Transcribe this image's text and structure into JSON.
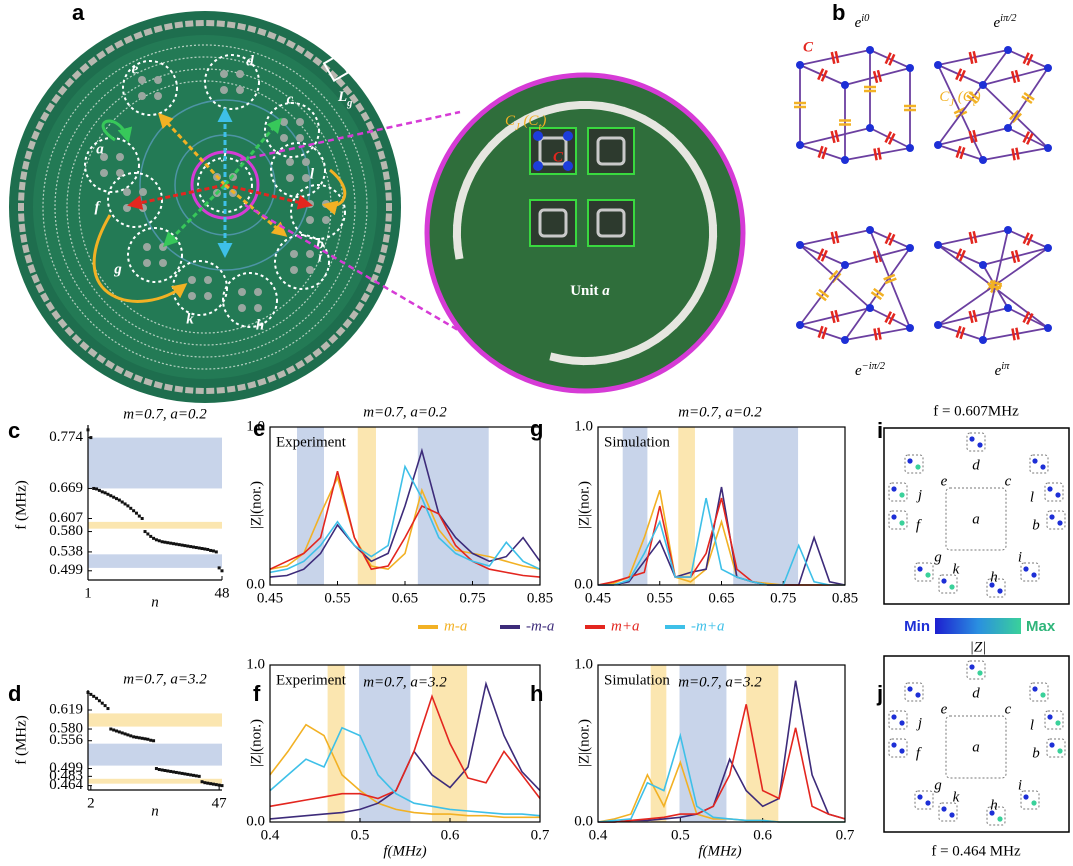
{
  "panel_labels": [
    "a",
    "b",
    "c",
    "d",
    "e",
    "f",
    "g",
    "h",
    "i",
    "j"
  ],
  "photo": {
    "unit_labels": [
      "e",
      "d",
      "c",
      "a",
      "j",
      "l",
      "f",
      "b",
      "g",
      "i",
      "k",
      "h"
    ],
    "lg": [
      {
        "text": "L"
      },
      {
        "sub": "g"
      }
    ],
    "zoom_cj": [
      {
        "text": "C"
      },
      {
        "sub": "J"
      },
      {
        "text": " (C"
      },
      {
        "sub": "t"
      },
      {
        "text": ")"
      }
    ],
    "zoom_c": "C",
    "zoom_unit": [
      {
        "text": "Unit "
      },
      {
        "italic": "a"
      }
    ]
  },
  "lattice": {
    "phases": [
      [
        {
          "text": "e"
        },
        {
          "sup": "i0"
        }
      ],
      [
        {
          "text": "e"
        },
        {
          "sup": "iπ/2"
        }
      ],
      [
        {
          "text": "e"
        },
        {
          "sup": "−iπ/2"
        }
      ],
      [
        {
          "text": "e"
        },
        {
          "sup": "iπ"
        }
      ]
    ],
    "c_label": "C",
    "cj_label": [
      {
        "text": "C"
      },
      {
        "sub": "J"
      },
      {
        "text": " (C"
      },
      {
        "sub": "t"
      },
      {
        "text": ")"
      }
    ]
  },
  "colorbar": {
    "min": "Min",
    "max": "Max",
    "label": "|Z|"
  },
  "maps": [
    {
      "title": "f = 0.607MHz",
      "labels": [
        "a",
        "b",
        "c",
        "d",
        "e",
        "f",
        "g",
        "h",
        "i",
        "j",
        "k",
        "l"
      ]
    },
    {
      "title": "f = 0.464 MHz",
      "labels": [
        "a",
        "b",
        "c",
        "d",
        "e",
        "f",
        "g",
        "h",
        "i",
        "j",
        "k",
        "l"
      ]
    }
  ],
  "chart_data": [
    {
      "type": "scatter",
      "title": "m=0.7, a=0.2",
      "ylabel": "f (MHz)",
      "xlabel": "n",
      "color": "#111111",
      "x": [
        1,
        2,
        3,
        4,
        5,
        6,
        7,
        8,
        9,
        10,
        11,
        12,
        13,
        14,
        15,
        16,
        17,
        18,
        19,
        20,
        21,
        22,
        23,
        24,
        25,
        26,
        27,
        28,
        29,
        30,
        31,
        32,
        33,
        34,
        35,
        36,
        37,
        38,
        39,
        40,
        41,
        42,
        43,
        44,
        45,
        46,
        47,
        48
      ],
      "values": [
        0.79,
        0.774,
        0.669,
        0.668,
        0.665,
        0.662,
        0.66,
        0.657,
        0.654,
        0.651,
        0.648,
        0.645,
        0.641,
        0.637,
        0.633,
        0.628,
        0.623,
        0.618,
        0.612,
        0.607,
        0.58,
        0.575,
        0.57,
        0.566,
        0.563,
        0.561,
        0.559,
        0.558,
        0.557,
        0.556,
        0.555,
        0.554,
        0.553,
        0.552,
        0.551,
        0.55,
        0.549,
        0.548,
        0.547,
        0.546,
        0.545,
        0.544,
        0.543,
        0.541,
        0.54,
        0.538,
        0.505,
        0.499
      ],
      "xlim": [
        1,
        48
      ],
      "xticks": [
        1,
        48
      ],
      "ylim": [
        0.48,
        0.8
      ],
      "yticks": [
        0.774,
        0.669,
        0.607,
        {
          "value": 0.58,
          "label": "0.580"
        },
        0.538,
        0.499
      ],
      "bands": [
        {
          "range": [
            0.669,
            0.774
          ],
          "color": "#c8d4ea"
        },
        {
          "range": [
            0.586,
            0.6
          ],
          "color": "#fbe6b0"
        },
        {
          "range": [
            0.505,
            0.533
          ],
          "color": "#c8d4ea"
        }
      ]
    },
    {
      "type": "scatter",
      "title": "m=0.7, a=3.2",
      "ylabel": "f (MHz)",
      "xlabel": "n",
      "color": "#111111",
      "x": [
        1,
        2,
        3,
        4,
        5,
        6,
        7,
        8,
        9,
        10,
        11,
        12,
        13,
        14,
        15,
        16,
        17,
        18,
        19,
        20,
        21,
        22,
        23,
        24,
        25,
        26,
        27,
        28,
        29,
        30,
        31,
        32,
        33,
        34,
        35,
        36,
        37,
        38,
        39,
        40,
        41,
        42,
        43,
        44,
        45,
        46,
        47,
        48
      ],
      "values": [
        0.655,
        0.651,
        0.647,
        0.643,
        0.638,
        0.633,
        0.628,
        0.622,
        0.58,
        0.578,
        0.576,
        0.574,
        0.572,
        0.57,
        0.568,
        0.566,
        0.564,
        0.563,
        0.562,
        0.561,
        0.56,
        0.559,
        0.557,
        0.556,
        0.499,
        0.497,
        0.496,
        0.495,
        0.494,
        0.493,
        0.492,
        0.491,
        0.49,
        0.489,
        0.488,
        0.487,
        0.486,
        0.485,
        0.484,
        0.483,
        0.472,
        0.47,
        0.469,
        0.468,
        0.467,
        0.466,
        0.465,
        0.464
      ],
      "xlim": [
        1,
        48
      ],
      "xticks": [
        2,
        47
      ],
      "ylim": [
        0.455,
        0.66
      ],
      "yticks": [
        0.619,
        {
          "value": 0.58,
          "label": "0.580"
        },
        0.556,
        0.499,
        0.483,
        0.464
      ],
      "bands": [
        {
          "range": [
            0.585,
            0.612
          ],
          "color": "#fbe6b0"
        },
        {
          "range": [
            0.505,
            0.55
          ],
          "color": "#c8d4ea"
        },
        {
          "range": [
            0.468,
            0.478
          ],
          "color": "#fbe6b0"
        }
      ]
    },
    {
      "type": "line",
      "title": "m=0.7, a=0.2",
      "annotation": "Experiment",
      "ylabel": "|Z|(nor.)",
      "x": [
        0.45,
        0.475,
        0.5,
        0.525,
        0.55,
        0.575,
        0.6,
        0.625,
        0.65,
        0.675,
        0.7,
        0.725,
        0.75,
        0.775,
        0.8,
        0.825,
        0.85
      ],
      "series": [
        {
          "name": "m-a",
          "color": "#f2b124",
          "values": [
            0.1,
            0.12,
            0.2,
            0.45,
            0.68,
            0.3,
            0.12,
            0.1,
            0.2,
            0.6,
            0.35,
            0.22,
            0.2,
            0.18,
            0.15,
            0.12,
            0.1
          ]
        },
        {
          "name": "-m-a",
          "color": "#3d2b7a",
          "values": [
            0.05,
            0.06,
            0.1,
            0.2,
            0.38,
            0.25,
            0.15,
            0.2,
            0.5,
            0.85,
            0.45,
            0.3,
            0.2,
            0.15,
            0.18,
            0.3,
            0.15
          ]
        },
        {
          "name": "m+a",
          "color": "#e3261f",
          "values": [
            0.1,
            0.15,
            0.2,
            0.3,
            0.72,
            0.3,
            0.1,
            0.12,
            0.3,
            0.5,
            0.45,
            0.25,
            0.15,
            0.1,
            0.08,
            0.06,
            0.05
          ]
        },
        {
          "name": "-m+a",
          "color": "#3ec0e8",
          "values": [
            0.08,
            0.1,
            0.15,
            0.25,
            0.4,
            0.25,
            0.18,
            0.25,
            0.75,
            0.55,
            0.3,
            0.2,
            0.15,
            0.12,
            0.27,
            0.15,
            0.1
          ]
        }
      ],
      "xlim": [
        0.45,
        0.85
      ],
      "xticks": [
        0.45,
        0.55,
        0.65,
        0.75,
        0.85
      ],
      "ylim": [
        0,
        1
      ],
      "yticks": [
        {
          "value": 0,
          "label": "0.0"
        },
        {
          "value": 1,
          "label": "1.0"
        }
      ],
      "bands": [
        {
          "range": [
            0.49,
            0.53
          ],
          "color": "#c8d4ea"
        },
        {
          "range": [
            0.58,
            0.607
          ],
          "color": "#fbe6b0"
        },
        {
          "range": [
            0.669,
            0.774
          ],
          "color": "#c8d4ea"
        }
      ]
    },
    {
      "type": "line",
      "title": "m=0.7, a=3.2",
      "annotation": "Experiment",
      "ylabel": "|Z|(nor.)",
      "xlabel": "f(MHz)",
      "x": [
        0.4,
        0.42,
        0.44,
        0.46,
        0.48,
        0.5,
        0.52,
        0.54,
        0.56,
        0.58,
        0.6,
        0.62,
        0.64,
        0.66,
        0.68,
        0.7
      ],
      "series": [
        {
          "color": "#f2b124",
          "values": [
            0.3,
            0.45,
            0.62,
            0.55,
            0.3,
            0.2,
            0.12,
            0.08,
            0.06,
            0.05,
            0.05,
            0.04,
            0.04,
            0.03,
            0.03,
            0.03
          ]
        },
        {
          "color": "#3d2b7a",
          "values": [
            0.02,
            0.03,
            0.04,
            0.05,
            0.06,
            0.08,
            0.12,
            0.2,
            0.45,
            0.3,
            0.22,
            0.35,
            0.88,
            0.55,
            0.32,
            0.2
          ]
        },
        {
          "color": "#e3261f",
          "values": [
            0.1,
            0.12,
            0.14,
            0.16,
            0.18,
            0.18,
            0.15,
            0.2,
            0.45,
            0.8,
            0.5,
            0.28,
            0.25,
            0.45,
            0.3,
            0.15
          ]
        },
        {
          "color": "#3ec0e8",
          "values": [
            0.2,
            0.3,
            0.4,
            0.35,
            0.6,
            0.55,
            0.3,
            0.18,
            0.12,
            0.1,
            0.08,
            0.07,
            0.06,
            0.05,
            0.05,
            0.04
          ]
        }
      ],
      "xlim": [
        0.4,
        0.7
      ],
      "xticks": [
        0.4,
        0.5,
        0.6,
        0.7
      ],
      "ylim": [
        0,
        1
      ],
      "yticks": [
        {
          "value": 0,
          "label": "0.0"
        },
        {
          "value": 1,
          "label": "1.0"
        }
      ],
      "bands": [
        {
          "range": [
            0.464,
            0.483
          ],
          "color": "#fbe6b0"
        },
        {
          "range": [
            0.499,
            0.556
          ],
          "color": "#c8d4ea"
        },
        {
          "range": [
            0.58,
            0.619
          ],
          "color": "#fbe6b0"
        }
      ]
    },
    {
      "type": "line",
      "title": "m=0.7, a=0.2",
      "annotation": "Simulation",
      "ylabel": "|Z|(nor.)",
      "x": [
        0.45,
        0.475,
        0.5,
        0.525,
        0.55,
        0.575,
        0.6,
        0.625,
        0.65,
        0.675,
        0.7,
        0.725,
        0.75,
        0.775,
        0.8,
        0.825,
        0.85
      ],
      "series": [
        {
          "color": "#f2b124",
          "values": [
            0,
            0.01,
            0.05,
            0.3,
            0.6,
            0.05,
            0.02,
            0.1,
            0.4,
            0.05,
            0.02,
            0.01,
            0,
            0,
            0,
            0,
            0
          ]
        },
        {
          "color": "#3d2b7a",
          "values": [
            0,
            0,
            0.02,
            0.15,
            0.28,
            0.05,
            0.08,
            0.1,
            0.62,
            0.05,
            0.02,
            0,
            0,
            0,
            0.3,
            0.02,
            0
          ]
        },
        {
          "color": "#e3261f",
          "values": [
            0,
            0.02,
            0.05,
            0.08,
            0.5,
            0.05,
            0.05,
            0.2,
            0.55,
            0.1,
            0.02,
            0,
            0,
            0,
            0,
            0,
            0
          ]
        },
        {
          "color": "#3ec0e8",
          "values": [
            0,
            0,
            0.03,
            0.2,
            0.4,
            0.05,
            0.05,
            0.55,
            0.1,
            0.05,
            0.02,
            0,
            0,
            0.25,
            0.02,
            0,
            0
          ]
        }
      ],
      "xlim": [
        0.45,
        0.85
      ],
      "xticks": [
        0.45,
        0.55,
        0.65,
        0.75,
        0.85
      ],
      "ylim": [
        0,
        1
      ],
      "yticks": [
        {
          "value": 0,
          "label": "0.0"
        },
        {
          "value": 1,
          "label": "1.0"
        }
      ],
      "bands": [
        {
          "range": [
            0.49,
            0.53
          ],
          "color": "#c8d4ea"
        },
        {
          "range": [
            0.58,
            0.607
          ],
          "color": "#fbe6b0"
        },
        {
          "range": [
            0.669,
            0.774
          ],
          "color": "#c8d4ea"
        }
      ]
    },
    {
      "type": "line",
      "title": "m=0.7, a=3.2",
      "annotation": "Simulation",
      "ylabel": "|Z|(nor.)",
      "xlabel": "f(MHz)",
      "x": [
        0.4,
        0.42,
        0.44,
        0.46,
        0.48,
        0.5,
        0.52,
        0.54,
        0.56,
        0.58,
        0.6,
        0.62,
        0.64,
        0.66,
        0.68,
        0.7
      ],
      "series": [
        {
          "color": "#f2b124",
          "values": [
            0,
            0.02,
            0.05,
            0.3,
            0.1,
            0.38,
            0.05,
            0.02,
            0.02,
            0.01,
            0.01,
            0,
            0,
            0,
            0,
            0
          ]
        },
        {
          "color": "#3d2b7a",
          "values": [
            0,
            0,
            0.01,
            0.01,
            0.02,
            0.03,
            0.05,
            0.1,
            0.4,
            0.2,
            0.1,
            0.15,
            0.9,
            0.3,
            0.05,
            0.02
          ]
        },
        {
          "color": "#e3261f",
          "values": [
            0,
            0,
            0.01,
            0.02,
            0.03,
            0.05,
            0.05,
            0.1,
            0.3,
            0.75,
            0.2,
            0.15,
            0.6,
            0.1,
            0.05,
            0.02
          ]
        },
        {
          "color": "#3ec0e8",
          "values": [
            0,
            0.01,
            0.02,
            0.25,
            0.2,
            0.55,
            0.1,
            0.03,
            0.02,
            0.01,
            0.01,
            0,
            0,
            0,
            0,
            0
          ]
        }
      ],
      "xlim": [
        0.4,
        0.7
      ],
      "xticks": [
        0.4,
        0.5,
        0.6,
        0.7
      ],
      "ylim": [
        0,
        1
      ],
      "yticks": [
        {
          "value": 0,
          "label": "0.0"
        },
        {
          "value": 1,
          "label": "1.0"
        }
      ],
      "bands": [
        {
          "range": [
            0.464,
            0.483
          ],
          "color": "#fbe6b0"
        },
        {
          "range": [
            0.499,
            0.556
          ],
          "color": "#c8d4ea"
        },
        {
          "range": [
            0.58,
            0.619
          ],
          "color": "#fbe6b0"
        }
      ]
    }
  ]
}
